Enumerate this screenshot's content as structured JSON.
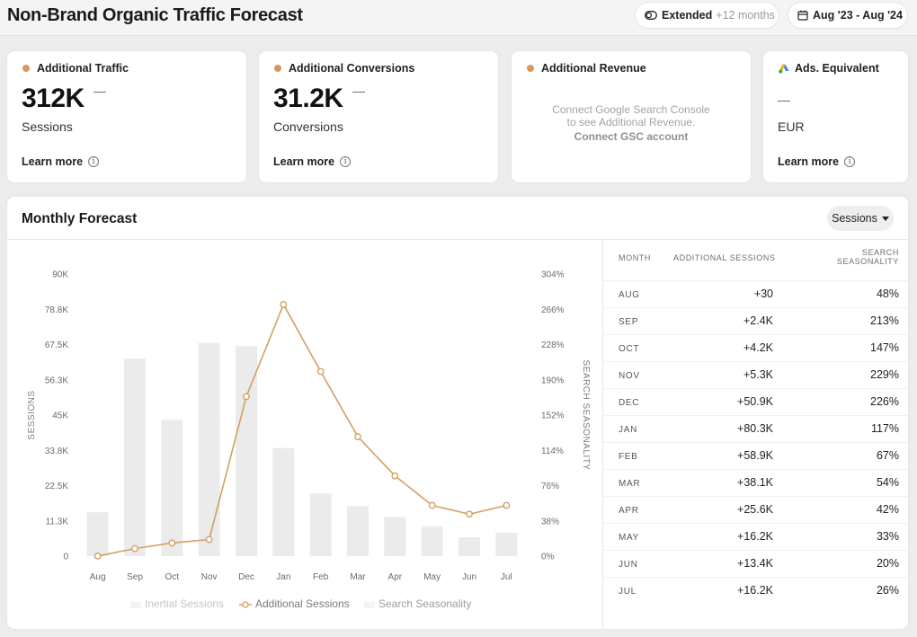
{
  "header": {
    "title": "Non-Brand Organic Traffic Forecast",
    "extended_label": "Extended",
    "extended_extra": "+12 months",
    "date_range": "Aug '23 - Aug '24"
  },
  "cards": {
    "traffic": {
      "title": "Additional Traffic",
      "value": "312K",
      "dash": "—",
      "unit": "Sessions",
      "learn": "Learn more"
    },
    "conversions": {
      "title": "Additional Conversions",
      "value": "31.2K",
      "dash": "—",
      "unit": "Conversions",
      "learn": "Learn more"
    },
    "revenue": {
      "title": "Additional Revenue",
      "line1": "Connect Google Search Console",
      "line2": "to see Additional Revenue.",
      "link": "Connect GSC account"
    },
    "ads": {
      "title": "Ads. Equivalent",
      "dash": "—",
      "unit": "EUR",
      "learn": "Learn more"
    }
  },
  "forecast": {
    "title": "Monthly Forecast",
    "metric_select": "Sessions"
  },
  "colors": {
    "accent": "#d49a5c",
    "bar": "#ebebeb",
    "line": "#d2a064"
  },
  "chart_data": {
    "type": "bar",
    "categories": [
      "Aug",
      "Sep",
      "Oct",
      "Nov",
      "Dec",
      "Jan",
      "Feb",
      "Mar",
      "Apr",
      "May",
      "Jun",
      "Jul"
    ],
    "y_ticks": [
      "0",
      "11.3K",
      "22.5K",
      "33.8K",
      "45K",
      "56.3K",
      "67.5K",
      "78.8K",
      "90K"
    ],
    "y2_ticks": [
      "0%",
      "38%",
      "76%",
      "114%",
      "152%",
      "190%",
      "228%",
      "266%",
      "304%"
    ],
    "ylabel": "SESSIONS",
    "y2label": "SEARCH SEASONALITY",
    "ylim": [
      0,
      90000
    ],
    "y2lim": [
      0,
      304
    ],
    "series": [
      {
        "name": "Inertial Sessions",
        "type": "bar",
        "values": [
          14000,
          63000,
          43500,
          68000,
          67000,
          34500,
          20000,
          16000,
          12500,
          9500,
          6000,
          7500
        ]
      },
      {
        "name": "Additional Sessions",
        "type": "line",
        "values": [
          30,
          2400,
          4200,
          5300,
          50900,
          80300,
          58900,
          38100,
          25600,
          16200,
          13400,
          16200
        ]
      },
      {
        "name": "Search Seasonality",
        "type": "bar",
        "values": [
          48,
          213,
          147,
          229,
          226,
          117,
          67,
          54,
          42,
          33,
          20,
          26
        ]
      }
    ],
    "legend": "bottom"
  },
  "table": {
    "headers": {
      "month": "MONTH",
      "sessions": "ADDITIONAL SESSIONS",
      "seasonality_1": "SEARCH",
      "seasonality_2": "SEASONALITY"
    },
    "rows": [
      {
        "month": "AUG",
        "sessions": "+30",
        "seasonality": "48%"
      },
      {
        "month": "SEP",
        "sessions": "+2.4K",
        "seasonality": "213%"
      },
      {
        "month": "OCT",
        "sessions": "+4.2K",
        "seasonality": "147%"
      },
      {
        "month": "NOV",
        "sessions": "+5.3K",
        "seasonality": "229%"
      },
      {
        "month": "DEC",
        "sessions": "+50.9K",
        "seasonality": "226%"
      },
      {
        "month": "JAN",
        "sessions": "+80.3K",
        "seasonality": "117%"
      },
      {
        "month": "FEB",
        "sessions": "+58.9K",
        "seasonality": "67%"
      },
      {
        "month": "MAR",
        "sessions": "+38.1K",
        "seasonality": "54%"
      },
      {
        "month": "APR",
        "sessions": "+25.6K",
        "seasonality": "42%"
      },
      {
        "month": "MAY",
        "sessions": "+16.2K",
        "seasonality": "33%"
      },
      {
        "month": "JUN",
        "sessions": "+13.4K",
        "seasonality": "20%"
      },
      {
        "month": "JUL",
        "sessions": "+16.2K",
        "seasonality": "26%"
      }
    ]
  }
}
